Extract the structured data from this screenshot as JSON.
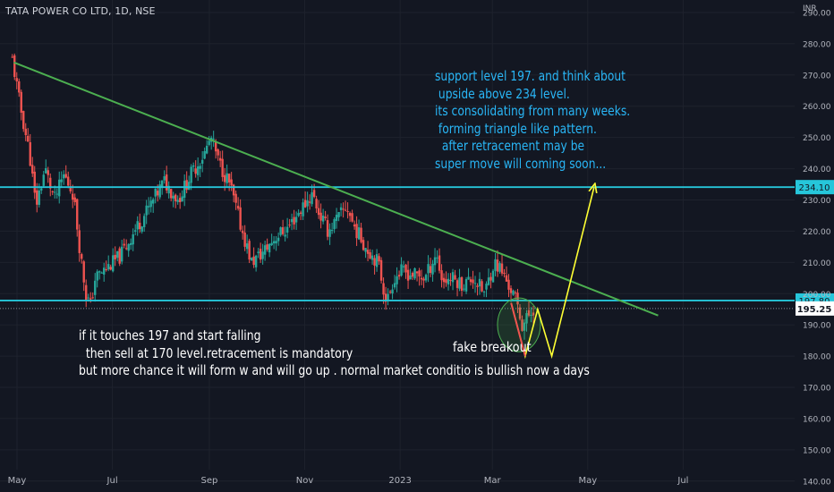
{
  "header": {
    "title": "TATA POWER CO LTD, 1D, NSE",
    "currency": "INR"
  },
  "annotations": {
    "top_text": "support level 197. and think about\n upside above 234 level.\nits consolidating from many weeks.\n forming triangle like pattern.\n  after retracement may be\nsuper move will coming soon...",
    "bottom_text": "if it touches 197 and start falling\n  then sell at 170 level.retracement is mandatory\nbut more chance it will form w and will go up . normal market conditio is bullish now a days",
    "fake_text": "fake breakout"
  },
  "colors": {
    "background": "#131722",
    "grid": "#1e222d",
    "up": "#26a69a",
    "down": "#ef5350",
    "trendline": "#4caf50",
    "level_line": "#26c6da",
    "projection": "#ffff33",
    "current_label": "#ffffff"
  },
  "chart_data": {
    "type": "candlestick",
    "symbol": "TATA POWER CO LTD",
    "interval": "1D",
    "exchange": "NSE",
    "x_tick_labels": [
      "May",
      "Jul",
      "Sep",
      "Nov",
      "2023",
      "Mar",
      "May",
      "Jul"
    ],
    "y_ticks": [
      140,
      150,
      160,
      170,
      180,
      190,
      200,
      210,
      220,
      230,
      240,
      250,
      260,
      270,
      280,
      290
    ],
    "y_tick_labels": [
      "140.00",
      "150.00",
      "160.00",
      "170.00",
      "180.00",
      "190.00",
      "200.00",
      "210.00",
      "220.00",
      "230.00",
      "240.00",
      "250.00",
      "260.00",
      "270.00",
      "280.00",
      "290.00"
    ],
    "ylim": [
      136.5,
      294
    ],
    "horizontal_levels": [
      {
        "value": 234.1,
        "label": "234.10"
      },
      {
        "value": 197.8,
        "label": "197.80"
      }
    ],
    "current_price": {
      "value": 195.25,
      "label": "195.25"
    },
    "trendline": {
      "from": {
        "date": "2022-04-29",
        "price": 274
      },
      "to": {
        "date": "2023-06-15",
        "price": 193
      }
    },
    "projection_path": [
      {
        "date": "2023-03-13",
        "price": 197
      },
      {
        "date": "2023-03-22",
        "price": 180
      },
      {
        "date": "2023-03-30",
        "price": 195
      },
      {
        "date": "2023-04-08",
        "price": 180
      },
      {
        "date": "2023-05-05",
        "price": 234
      }
    ],
    "fake_breakout_zone": {
      "date": "2023-03-18",
      "price": 190
    },
    "price_path": [
      {
        "date": "2022-04-28",
        "close": 275
      },
      {
        "date": "2022-05-03",
        "close": 260
      },
      {
        "date": "2022-05-09",
        "close": 245
      },
      {
        "date": "2022-05-13",
        "close": 228
      },
      {
        "date": "2022-05-19",
        "close": 240
      },
      {
        "date": "2022-05-25",
        "close": 230
      },
      {
        "date": "2022-05-31",
        "close": 238
      },
      {
        "date": "2022-06-06",
        "close": 232
      },
      {
        "date": "2022-06-10",
        "close": 215
      },
      {
        "date": "2022-06-14",
        "close": 200
      },
      {
        "date": "2022-06-17",
        "close": 196
      },
      {
        "date": "2022-06-20",
        "close": 205
      },
      {
        "date": "2022-06-27",
        "close": 208
      },
      {
        "date": "2022-07-06",
        "close": 212
      },
      {
        "date": "2022-07-15",
        "close": 220
      },
      {
        "date": "2022-07-25",
        "close": 228
      },
      {
        "date": "2022-08-03",
        "close": 236
      },
      {
        "date": "2022-08-12",
        "close": 230
      },
      {
        "date": "2022-08-20",
        "close": 238
      },
      {
        "date": "2022-08-29",
        "close": 245
      },
      {
        "date": "2022-09-02",
        "close": 250
      },
      {
        "date": "2022-09-07",
        "close": 242
      },
      {
        "date": "2022-09-14",
        "close": 235
      },
      {
        "date": "2022-09-22",
        "close": 220
      },
      {
        "date": "2022-09-28",
        "close": 210
      },
      {
        "date": "2022-10-05",
        "close": 213
      },
      {
        "date": "2022-10-13",
        "close": 218
      },
      {
        "date": "2022-10-21",
        "close": 221
      },
      {
        "date": "2022-10-31",
        "close": 228
      },
      {
        "date": "2022-11-06",
        "close": 232
      },
      {
        "date": "2022-11-10",
        "close": 226
      },
      {
        "date": "2022-11-16",
        "close": 220
      },
      {
        "date": "2022-11-22",
        "close": 224
      },
      {
        "date": "2022-11-28",
        "close": 228
      },
      {
        "date": "2022-12-02",
        "close": 222
      },
      {
        "date": "2022-12-10",
        "close": 215
      },
      {
        "date": "2022-12-18",
        "close": 210
      },
      {
        "date": "2022-12-22",
        "close": 200
      },
      {
        "date": "2022-12-24",
        "close": 198
      },
      {
        "date": "2022-12-28",
        "close": 205
      },
      {
        "date": "2023-01-02",
        "close": 207
      },
      {
        "date": "2023-01-10",
        "close": 206
      },
      {
        "date": "2023-01-17",
        "close": 205
      },
      {
        "date": "2023-01-24",
        "close": 213
      },
      {
        "date": "2023-01-28",
        "close": 204
      },
      {
        "date": "2023-02-03",
        "close": 205
      },
      {
        "date": "2023-02-10",
        "close": 203
      },
      {
        "date": "2023-02-17",
        "close": 205
      },
      {
        "date": "2023-02-24",
        "close": 200
      },
      {
        "date": "2023-03-02",
        "close": 210
      },
      {
        "date": "2023-03-06",
        "close": 208
      },
      {
        "date": "2023-03-11",
        "close": 203
      },
      {
        "date": "2023-03-16",
        "close": 198
      },
      {
        "date": "2023-03-20",
        "close": 190
      },
      {
        "date": "2023-03-23",
        "close": 192
      },
      {
        "date": "2023-03-28",
        "close": 196
      }
    ]
  }
}
